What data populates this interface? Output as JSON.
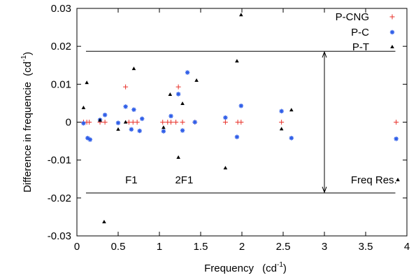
{
  "chart_data": {
    "type": "scatter",
    "xlabel": "Frequency",
    "xlabel_unit_base": "cd",
    "xlabel_unit_exp": "-1",
    "ylabel": "Difference in frequencie",
    "ylabel_unit_base": "cd",
    "ylabel_unit_exp": "-1",
    "xlim": [
      0,
      4
    ],
    "ylim": [
      -0.03,
      0.03
    ],
    "x_ticks": [
      {
        "value": 0,
        "label": "0"
      },
      {
        "value": 0.5,
        "label": "0.5"
      },
      {
        "value": 1,
        "label": "1"
      },
      {
        "value": 1.5,
        "label": "1.5"
      },
      {
        "value": 2,
        "label": "2"
      },
      {
        "value": 2.5,
        "label": "2.5"
      },
      {
        "value": 3,
        "label": "3"
      },
      {
        "value": 3.5,
        "label": "3.5"
      },
      {
        "value": 4,
        "label": "4"
      }
    ],
    "y_ticks": [
      {
        "value": -0.03,
        "label": "-0.03"
      },
      {
        "value": -0.02,
        "label": "-0.02"
      },
      {
        "value": -0.01,
        "label": "-0.01"
      },
      {
        "value": 0,
        "label": "0"
      },
      {
        "value": 0.01,
        "label": "0.01"
      },
      {
        "value": 0.02,
        "label": "0.02"
      },
      {
        "value": 0.03,
        "label": "0.03"
      }
    ],
    "grid": false,
    "legend_position": "top-right",
    "reference_lines": [
      {
        "y": 0.0187,
        "x_start": 0.11,
        "x_end": 3.86
      },
      {
        "y": -0.0187,
        "x_start": 0.11,
        "x_end": 3.86
      }
    ],
    "double_arrow": {
      "x": 3.0,
      "y1": 0.0187,
      "y2": -0.0187
    },
    "annotations": [
      {
        "text": "F1",
        "x": 0.66,
        "y": -0.0152
      },
      {
        "text": "2F1",
        "x": 1.3,
        "y": -0.0152
      },
      {
        "text": "Freq Res.",
        "x": 3.6,
        "y": -0.0152
      }
    ],
    "series": [
      {
        "name": "P-CNG",
        "marker": "plus",
        "color": "#e8322a",
        "points": [
          {
            "x": 0.08,
            "y": 0.0
          },
          {
            "x": 0.12,
            "y": 0.0
          },
          {
            "x": 0.15,
            "y": 0.0
          },
          {
            "x": 0.28,
            "y": 0.0
          },
          {
            "x": 0.34,
            "y": 0.0
          },
          {
            "x": 0.59,
            "y": 0.0093
          },
          {
            "x": 0.63,
            "y": 0.0
          },
          {
            "x": 0.68,
            "y": 0.0
          },
          {
            "x": 0.73,
            "y": 0.0
          },
          {
            "x": 1.04,
            "y": 0.0
          },
          {
            "x": 1.1,
            "y": 0.0
          },
          {
            "x": 1.14,
            "y": 0.0
          },
          {
            "x": 1.2,
            "y": 0.0
          },
          {
            "x": 1.23,
            "y": 0.0093
          },
          {
            "x": 1.28,
            "y": 0.0
          },
          {
            "x": 1.43,
            "y": 0.0
          },
          {
            "x": 1.8,
            "y": 0.0
          },
          {
            "x": 1.95,
            "y": 0.0
          },
          {
            "x": 1.99,
            "y": 0.0
          },
          {
            "x": 2.48,
            "y": 0.0
          },
          {
            "x": 3.87,
            "y": 0.0
          }
        ]
      },
      {
        "name": "P-C",
        "marker": "asterisk",
        "color": "#2f5ee8",
        "points": [
          {
            "x": 0.08,
            "y": -0.0003
          },
          {
            "x": 0.13,
            "y": -0.0042
          },
          {
            "x": 0.16,
            "y": -0.0046
          },
          {
            "x": 0.28,
            "y": 0.0006
          },
          {
            "x": 0.34,
            "y": 0.0019
          },
          {
            "x": 0.5,
            "y": -0.0002
          },
          {
            "x": 0.59,
            "y": 0.0041
          },
          {
            "x": 0.66,
            "y": -0.0019
          },
          {
            "x": 0.69,
            "y": 0.0033
          },
          {
            "x": 0.76,
            "y": -0.0023
          },
          {
            "x": 0.79,
            "y": 0.0009
          },
          {
            "x": 1.05,
            "y": -0.0024
          },
          {
            "x": 1.14,
            "y": 0.0016
          },
          {
            "x": 1.23,
            "y": 0.0074
          },
          {
            "x": 1.28,
            "y": -0.0022
          },
          {
            "x": 1.34,
            "y": 0.0131
          },
          {
            "x": 1.43,
            "y": 0.0
          },
          {
            "x": 1.8,
            "y": 0.0012
          },
          {
            "x": 1.94,
            "y": -0.0039
          },
          {
            "x": 1.99,
            "y": 0.0043
          },
          {
            "x": 2.48,
            "y": 0.0029
          },
          {
            "x": 2.6,
            "y": -0.0042
          },
          {
            "x": 3.87,
            "y": -0.0044
          }
        ]
      },
      {
        "name": "P-T",
        "marker": "triangle",
        "color": "#000000",
        "points": [
          {
            "x": 0.08,
            "y": 0.0038
          },
          {
            "x": 0.12,
            "y": 0.0104
          },
          {
            "x": 0.28,
            "y": 0.0005
          },
          {
            "x": 0.33,
            "y": -0.0263
          },
          {
            "x": 0.5,
            "y": -0.0019
          },
          {
            "x": 0.59,
            "y": 0.0
          },
          {
            "x": 0.69,
            "y": 0.0141
          },
          {
            "x": 1.05,
            "y": -0.0014
          },
          {
            "x": 1.13,
            "y": 0.0073
          },
          {
            "x": 1.23,
            "y": -0.0093
          },
          {
            "x": 1.28,
            "y": 0.0049
          },
          {
            "x": 1.45,
            "y": 0.011
          },
          {
            "x": 1.8,
            "y": -0.0121
          },
          {
            "x": 1.94,
            "y": 0.0161
          },
          {
            "x": 1.99,
            "y": 0.0283
          },
          {
            "x": 2.48,
            "y": -0.0018
          },
          {
            "x": 2.6,
            "y": 0.0032
          },
          {
            "x": 3.89,
            "y": -0.0152
          }
        ]
      }
    ]
  }
}
